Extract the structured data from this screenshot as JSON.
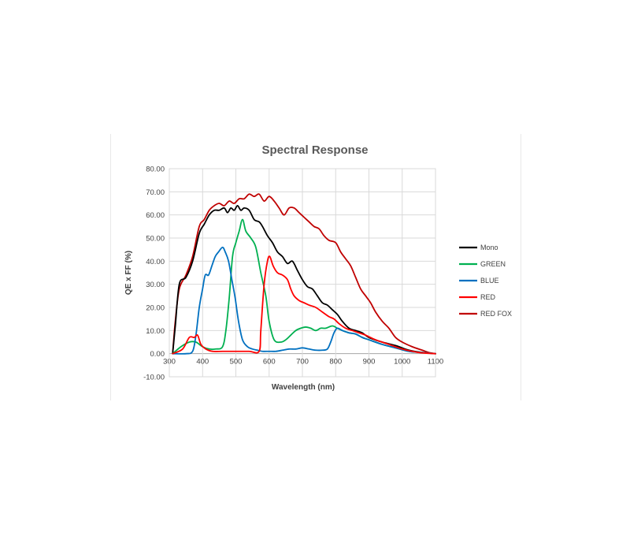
{
  "chart_data": {
    "type": "line",
    "title": "Spectral Response",
    "xlabel": "Wavelength (nm)",
    "ylabel": "QE x FF (%)",
    "xlim": [
      300,
      1100
    ],
    "ylim": [
      -10,
      80
    ],
    "x_ticks": [
      "300",
      "400",
      "500",
      "600",
      "700",
      "800",
      "900",
      "1000",
      "1100"
    ],
    "y_ticks": [
      "-10.00",
      "0.00",
      "10.00",
      "20.00",
      "30.00",
      "40.00",
      "50.00",
      "60.00",
      "70.00",
      "80.00"
    ],
    "legend_position": "right",
    "series": [
      {
        "name": "Mono",
        "color": "#000000",
        "points": [
          [
            310,
            0
          ],
          [
            318,
            12
          ],
          [
            330,
            30
          ],
          [
            350,
            33
          ],
          [
            370,
            40
          ],
          [
            390,
            52
          ],
          [
            405,
            56
          ],
          [
            420,
            60
          ],
          [
            435,
            62
          ],
          [
            450,
            62
          ],
          [
            465,
            63
          ],
          [
            475,
            61
          ],
          [
            485,
            63
          ],
          [
            495,
            62
          ],
          [
            505,
            64
          ],
          [
            515,
            62
          ],
          [
            525,
            63
          ],
          [
            540,
            62
          ],
          [
            555,
            58
          ],
          [
            570,
            57
          ],
          [
            580,
            55
          ],
          [
            595,
            51
          ],
          [
            610,
            48
          ],
          [
            625,
            44
          ],
          [
            640,
            42
          ],
          [
            655,
            39
          ],
          [
            670,
            40
          ],
          [
            685,
            36
          ],
          [
            700,
            32
          ],
          [
            715,
            29
          ],
          [
            730,
            28
          ],
          [
            745,
            25
          ],
          [
            760,
            22
          ],
          [
            775,
            21
          ],
          [
            790,
            19
          ],
          [
            805,
            17
          ],
          [
            820,
            14
          ],
          [
            840,
            11
          ],
          [
            860,
            10
          ],
          [
            880,
            9
          ],
          [
            900,
            7
          ],
          [
            940,
            5
          ],
          [
            980,
            3.5
          ],
          [
            1020,
            1.5
          ],
          [
            1060,
            0.5
          ],
          [
            1100,
            0
          ]
        ]
      },
      {
        "name": "GREEN",
        "color": "#00b050",
        "points": [
          [
            310,
            0
          ],
          [
            335,
            3
          ],
          [
            360,
            5
          ],
          [
            380,
            5
          ],
          [
            400,
            3
          ],
          [
            420,
            2
          ],
          [
            440,
            2
          ],
          [
            460,
            3
          ],
          [
            470,
            10
          ],
          [
            480,
            24
          ],
          [
            490,
            42
          ],
          [
            500,
            48
          ],
          [
            510,
            53
          ],
          [
            520,
            58
          ],
          [
            530,
            53
          ],
          [
            545,
            50
          ],
          [
            560,
            46
          ],
          [
            575,
            35
          ],
          [
            590,
            25
          ],
          [
            600,
            14
          ],
          [
            615,
            6
          ],
          [
            635,
            5
          ],
          [
            650,
            6
          ],
          [
            665,
            8
          ],
          [
            680,
            10
          ],
          [
            695,
            11
          ],
          [
            710,
            11.5
          ],
          [
            725,
            11
          ],
          [
            740,
            10
          ],
          [
            755,
            11
          ],
          [
            770,
            11
          ],
          [
            790,
            12
          ],
          [
            805,
            11
          ],
          [
            820,
            10
          ],
          [
            840,
            9
          ],
          [
            860,
            8.5
          ],
          [
            880,
            7
          ],
          [
            900,
            6
          ],
          [
            940,
            4
          ],
          [
            980,
            2.5
          ],
          [
            1020,
            1
          ],
          [
            1060,
            0.5
          ],
          [
            1100,
            0
          ]
        ]
      },
      {
        "name": "BLUE",
        "color": "#0070c0",
        "points": [
          [
            310,
            0
          ],
          [
            350,
            0
          ],
          [
            370,
            1
          ],
          [
            380,
            8
          ],
          [
            390,
            20
          ],
          [
            400,
            28
          ],
          [
            408,
            34
          ],
          [
            418,
            34
          ],
          [
            428,
            38
          ],
          [
            438,
            42
          ],
          [
            448,
            44
          ],
          [
            460,
            46
          ],
          [
            468,
            44
          ],
          [
            478,
            40
          ],
          [
            488,
            32
          ],
          [
            498,
            24
          ],
          [
            508,
            14
          ],
          [
            520,
            6
          ],
          [
            535,
            3
          ],
          [
            550,
            2
          ],
          [
            565,
            1.5
          ],
          [
            580,
            1
          ],
          [
            600,
            1
          ],
          [
            620,
            1
          ],
          [
            640,
            1.5
          ],
          [
            660,
            2
          ],
          [
            680,
            2
          ],
          [
            700,
            2.5
          ],
          [
            720,
            2
          ],
          [
            740,
            1.5
          ],
          [
            760,
            1.5
          ],
          [
            775,
            2
          ],
          [
            785,
            5
          ],
          [
            795,
            9
          ],
          [
            805,
            11
          ],
          [
            820,
            10
          ],
          [
            840,
            9
          ],
          [
            860,
            8.5
          ],
          [
            880,
            7
          ],
          [
            900,
            6
          ],
          [
            940,
            4
          ],
          [
            980,
            2.5
          ],
          [
            1020,
            1
          ],
          [
            1060,
            0.5
          ],
          [
            1100,
            0
          ]
        ]
      },
      {
        "name": "RED",
        "color": "#ff0000",
        "points": [
          [
            310,
            0
          ],
          [
            340,
            2
          ],
          [
            360,
            7
          ],
          [
            375,
            7
          ],
          [
            385,
            8
          ],
          [
            395,
            4
          ],
          [
            410,
            2
          ],
          [
            430,
            1
          ],
          [
            460,
            1
          ],
          [
            500,
            1
          ],
          [
            540,
            1
          ],
          [
            570,
            1
          ],
          [
            575,
            10
          ],
          [
            585,
            30
          ],
          [
            595,
            40
          ],
          [
            602,
            42
          ],
          [
            612,
            38
          ],
          [
            625,
            35
          ],
          [
            640,
            34
          ],
          [
            655,
            32
          ],
          [
            665,
            28
          ],
          [
            675,
            25
          ],
          [
            690,
            23
          ],
          [
            705,
            22
          ],
          [
            720,
            21
          ],
          [
            740,
            20
          ],
          [
            760,
            18
          ],
          [
            780,
            16
          ],
          [
            795,
            15
          ],
          [
            810,
            13
          ],
          [
            830,
            11
          ],
          [
            850,
            10
          ],
          [
            870,
            9
          ],
          [
            890,
            8
          ],
          [
            920,
            6
          ],
          [
            960,
            4
          ],
          [
            1000,
            2
          ],
          [
            1050,
            0.5
          ],
          [
            1100,
            0
          ]
        ]
      },
      {
        "name": "RED FOX",
        "color": "#c00000",
        "points": [
          [
            310,
            0
          ],
          [
            318,
            14
          ],
          [
            330,
            28
          ],
          [
            350,
            34
          ],
          [
            370,
            42
          ],
          [
            390,
            55
          ],
          [
            405,
            58
          ],
          [
            420,
            62
          ],
          [
            435,
            64
          ],
          [
            450,
            65
          ],
          [
            465,
            64
          ],
          [
            480,
            66
          ],
          [
            495,
            65
          ],
          [
            510,
            67
          ],
          [
            525,
            67
          ],
          [
            540,
            69
          ],
          [
            555,
            68
          ],
          [
            570,
            69
          ],
          [
            585,
            66
          ],
          [
            600,
            68
          ],
          [
            615,
            66
          ],
          [
            630,
            63
          ],
          [
            645,
            60
          ],
          [
            660,
            63
          ],
          [
            675,
            63
          ],
          [
            690,
            61
          ],
          [
            705,
            59
          ],
          [
            720,
            57
          ],
          [
            735,
            55
          ],
          [
            750,
            54
          ],
          [
            765,
            51
          ],
          [
            780,
            49
          ],
          [
            800,
            48
          ],
          [
            815,
            44
          ],
          [
            830,
            41
          ],
          [
            845,
            38
          ],
          [
            860,
            33
          ],
          [
            875,
            28
          ],
          [
            890,
            25
          ],
          [
            905,
            22
          ],
          [
            920,
            18
          ],
          [
            940,
            14
          ],
          [
            960,
            11
          ],
          [
            980,
            7
          ],
          [
            1000,
            5
          ],
          [
            1030,
            3
          ],
          [
            1060,
            1.5
          ],
          [
            1080,
            0.5
          ],
          [
            1100,
            0
          ]
        ]
      }
    ]
  }
}
